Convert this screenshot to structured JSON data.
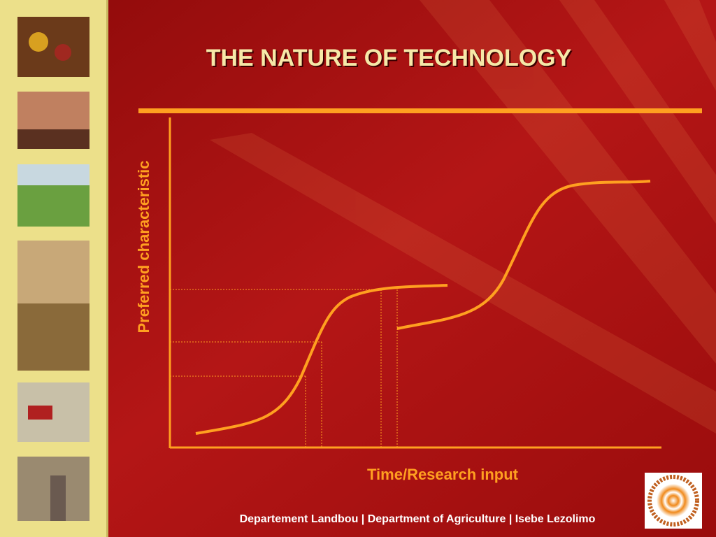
{
  "title": "THE NATURE OF TECHNOLOGY",
  "diagram": {
    "y_axis_label": "Preferred characteristic",
    "x_axis_label": "Time/Research input"
  },
  "footer": "Departement Landbou | Department of Agriculture | Isebe Lezolimo"
}
